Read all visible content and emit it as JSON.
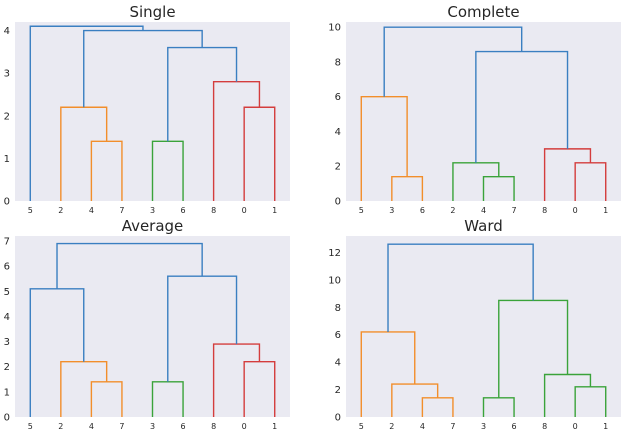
{
  "colors": {
    "background": "#eaeaf2",
    "above_threshold": "#3a7fc1",
    "orange": "#f28e2b",
    "green": "#3aa33a",
    "red": "#d43d3d"
  },
  "chart_data": [
    {
      "type": "dendrogram",
      "title": "Single",
      "ylim": [
        0,
        4.2
      ],
      "yticks": [
        "0",
        "1",
        "2",
        "3",
        "4"
      ],
      "leaf_order": [
        "5",
        "2",
        "4",
        "7",
        "3",
        "6",
        "8",
        "0",
        "1"
      ],
      "merges": [
        {
          "left": "4",
          "right": "7",
          "height": 1.4,
          "color": "orange"
        },
        {
          "left": "2",
          "right": "(4,7)",
          "height": 2.2,
          "color": "orange"
        },
        {
          "left": "3",
          "right": "6",
          "height": 1.4,
          "color": "green"
        },
        {
          "left": "0",
          "right": "1",
          "height": 2.2,
          "color": "red"
        },
        {
          "left": "8",
          "right": "(0,1)",
          "height": 2.8,
          "color": "red"
        },
        {
          "left": "(3,6)",
          "right": "(8,0,1)",
          "height": 3.6,
          "color": "above_threshold"
        },
        {
          "left": "(2,4,7)",
          "right": "(3,6,8,0,1)",
          "height": 4.0,
          "color": "above_threshold"
        },
        {
          "left": "5",
          "right": "(2,4,7,3,6,8,0,1)",
          "height": 4.1,
          "color": "above_threshold"
        }
      ]
    },
    {
      "type": "dendrogram",
      "title": "Complete",
      "ylim": [
        0,
        10.3
      ],
      "yticks": [
        "0",
        "2",
        "4",
        "6",
        "8",
        "10"
      ],
      "leaf_order": [
        "5",
        "3",
        "6",
        "2",
        "4",
        "7",
        "8",
        "0",
        "1"
      ],
      "merges": [
        {
          "left": "3",
          "right": "6",
          "height": 1.4,
          "color": "orange"
        },
        {
          "left": "5",
          "right": "(3,6)",
          "height": 6.0,
          "color": "orange"
        },
        {
          "left": "4",
          "right": "7",
          "height": 1.4,
          "color": "green"
        },
        {
          "left": "2",
          "right": "(4,7)",
          "height": 2.2,
          "color": "green"
        },
        {
          "left": "0",
          "right": "1",
          "height": 2.2,
          "color": "red"
        },
        {
          "left": "8",
          "right": "(0,1)",
          "height": 3.0,
          "color": "red"
        },
        {
          "left": "(2,4,7)",
          "right": "(8,0,1)",
          "height": 8.6,
          "color": "above_threshold"
        },
        {
          "left": "(5,3,6)",
          "right": "(2,4,7,8,0,1)",
          "height": 10.0,
          "color": "above_threshold"
        }
      ]
    },
    {
      "type": "dendrogram",
      "title": "Average",
      "ylim": [
        0,
        7.2
      ],
      "yticks": [
        "0",
        "1",
        "2",
        "3",
        "4",
        "5",
        "6",
        "7"
      ],
      "leaf_order": [
        "5",
        "2",
        "4",
        "7",
        "3",
        "6",
        "8",
        "0",
        "1"
      ],
      "merges": [
        {
          "left": "4",
          "right": "7",
          "height": 1.4,
          "color": "orange"
        },
        {
          "left": "2",
          "right": "(4,7)",
          "height": 2.2,
          "color": "orange"
        },
        {
          "left": "3",
          "right": "6",
          "height": 1.4,
          "color": "green"
        },
        {
          "left": "0",
          "right": "1",
          "height": 2.2,
          "color": "red"
        },
        {
          "left": "8",
          "right": "(0,1)",
          "height": 2.9,
          "color": "red"
        },
        {
          "left": "5",
          "right": "(2,4,7)",
          "height": 5.1,
          "color": "above_threshold"
        },
        {
          "left": "(3,6)",
          "right": "(8,0,1)",
          "height": 5.6,
          "color": "above_threshold"
        },
        {
          "left": "(5,2,4,7)",
          "right": "(3,6,8,0,1)",
          "height": 6.9,
          "color": "above_threshold"
        }
      ]
    },
    {
      "type": "dendrogram",
      "title": "Ward",
      "ylim": [
        0,
        13.2
      ],
      "yticks": [
        "0",
        "2",
        "4",
        "6",
        "8",
        "10",
        "12"
      ],
      "leaf_order": [
        "5",
        "2",
        "4",
        "7",
        "3",
        "6",
        "8",
        "0",
        "1"
      ],
      "merges": [
        {
          "left": "4",
          "right": "7",
          "height": 1.4,
          "color": "orange"
        },
        {
          "left": "2",
          "right": "(4,7)",
          "height": 2.4,
          "color": "orange"
        },
        {
          "left": "5",
          "right": "(2,4,7)",
          "height": 6.2,
          "color": "orange"
        },
        {
          "left": "3",
          "right": "6",
          "height": 1.4,
          "color": "green"
        },
        {
          "left": "0",
          "right": "1",
          "height": 2.2,
          "color": "green"
        },
        {
          "left": "8",
          "right": "(0,1)",
          "height": 3.1,
          "color": "green"
        },
        {
          "left": "(3,6)",
          "right": "(8,0,1)",
          "height": 8.5,
          "color": "green"
        },
        {
          "left": "(5,2,4,7)",
          "right": "(3,6,8,0,1)",
          "height": 12.6,
          "color": "above_threshold"
        }
      ]
    }
  ]
}
